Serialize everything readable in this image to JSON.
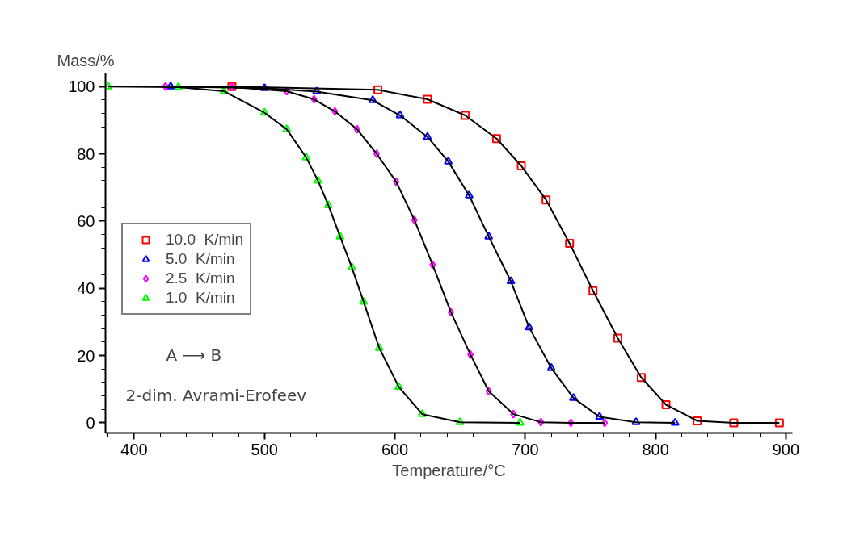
{
  "chart_data": {
    "type": "scatter",
    "xlabel": "Temperature/°C",
    "ylabel": "Mass/%",
    "xlim": [
      378,
      905
    ],
    "ylim": [
      -3,
      104
    ],
    "xticks": [
      400,
      500,
      600,
      700,
      800,
      900
    ],
    "yticks": [
      0,
      20,
      40,
      60,
      80,
      100
    ],
    "grid": false,
    "legend": "left",
    "annotations": [
      {
        "text": "A ⟶ B"
      },
      {
        "text": "2-dim. Avrami-Erofeev"
      }
    ],
    "series": [
      {
        "name": "10.0  K/min",
        "color": "#ff0000",
        "marker": "square",
        "x": [
          475,
          587,
          625,
          654,
          678,
          697,
          716,
          734,
          752,
          771,
          789,
          808,
          832,
          860,
          895
        ],
        "values": [
          100,
          99,
          96.2,
          91.4,
          84.5,
          76.4,
          66.3,
          53.4,
          39.3,
          25.2,
          13.5,
          5.4,
          0.6,
          0,
          0
        ]
      },
      {
        "name": "5.0  K/min",
        "color": "#0000ff",
        "marker": "triangle",
        "x": [
          428,
          500,
          540,
          583,
          604,
          625,
          641,
          657,
          672,
          689,
          703,
          720,
          737,
          757,
          785,
          815
        ],
        "values": [
          100,
          99.5,
          98.5,
          95.9,
          91.4,
          85,
          77.7,
          67.6,
          55.4,
          42.1,
          28.4,
          16.3,
          7.4,
          1.8,
          0.2,
          0
        ]
      },
      {
        "name": "2.5  K/min",
        "color": "#ff00ff",
        "marker": "diamond",
        "x": [
          424,
          475,
          517,
          538,
          554,
          571,
          586,
          601,
          615,
          629,
          643,
          658,
          672,
          691,
          712,
          735,
          761
        ],
        "values": [
          100,
          99.8,
          98.6,
          96.2,
          92.6,
          87.3,
          80,
          71.7,
          60.3,
          47,
          32.9,
          20.3,
          9.4,
          2.6,
          0.2,
          0,
          0
        ]
      },
      {
        "name": "1.0  K/min",
        "color": "#00ff00",
        "marker": "triangle",
        "x": [
          380,
          434,
          469,
          500,
          517,
          532,
          541,
          549,
          558,
          567,
          576,
          588,
          603,
          621,
          650,
          696
        ],
        "values": [
          100,
          99.8,
          98.6,
          92.2,
          87.3,
          78.9,
          72,
          64.7,
          55.4,
          46.2,
          36,
          22.3,
          10.7,
          2.6,
          0.2,
          0
        ]
      },
      {
        "type": "line",
        "color": "#000000",
        "x": [
          475,
          587,
          625,
          654,
          678,
          697,
          716,
          734,
          752,
          771,
          789,
          808,
          832,
          860,
          895
        ],
        "values": [
          100,
          99,
          96.2,
          91.4,
          84.5,
          76.4,
          66.3,
          53.4,
          39.3,
          25.2,
          13.5,
          5.4,
          0.6,
          0,
          0
        ]
      },
      {
        "type": "line",
        "color": "#000000",
        "x": [
          428,
          500,
          540,
          583,
          604,
          625,
          641,
          657,
          672,
          689,
          703,
          720,
          737,
          757,
          785,
          815
        ],
        "values": [
          100,
          99.5,
          98.5,
          95.9,
          91.4,
          85,
          77.7,
          67.6,
          55.4,
          42.1,
          28.4,
          16.3,
          7.4,
          1.8,
          0.2,
          0
        ]
      },
      {
        "type": "line",
        "color": "#000000",
        "x": [
          424,
          475,
          517,
          538,
          554,
          571,
          586,
          601,
          615,
          629,
          643,
          658,
          672,
          691,
          712,
          735,
          761
        ],
        "values": [
          100,
          99.8,
          98.6,
          96.2,
          92.6,
          87.3,
          80,
          71.7,
          60.3,
          47,
          32.9,
          20.3,
          9.4,
          2.6,
          0.2,
          0,
          0
        ]
      },
      {
        "type": "line",
        "color": "#000000",
        "x": [
          380,
          434,
          469,
          500,
          517,
          532,
          541,
          549,
          558,
          567,
          576,
          588,
          603,
          621,
          650,
          696
        ],
        "values": [
          100,
          99.8,
          98.6,
          92.2,
          87.3,
          78.9,
          72,
          64.7,
          55.4,
          46.2,
          36,
          22.3,
          10.7,
          2.6,
          0.2,
          0
        ]
      }
    ]
  }
}
